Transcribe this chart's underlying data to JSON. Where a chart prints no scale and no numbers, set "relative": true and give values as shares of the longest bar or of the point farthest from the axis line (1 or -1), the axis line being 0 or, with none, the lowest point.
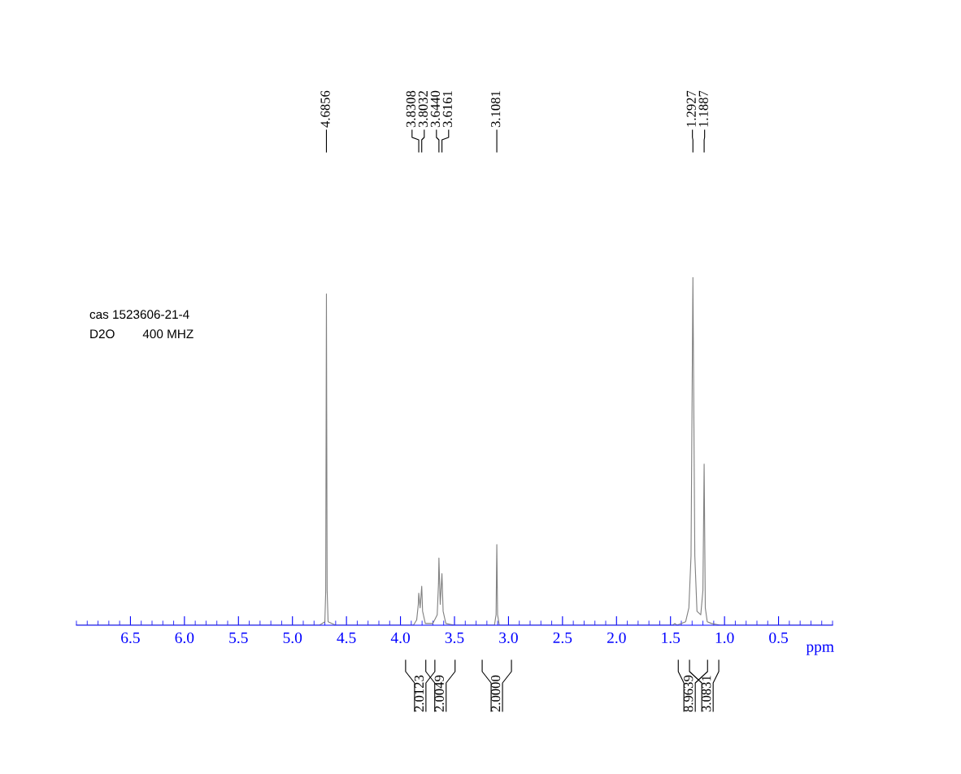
{
  "chart_data": {
    "type": "line",
    "relative": true,
    "xlabel": "ppm",
    "xlim": [
      7.0,
      0.0
    ],
    "xticks": [
      6.5,
      {
        "value": 6.0,
        "label": "6.0"
      },
      5.5,
      {
        "value": 5.0,
        "label": "5.0"
      },
      4.5,
      {
        "value": 4.0,
        "label": "4.0"
      },
      3.5,
      {
        "value": 3.0,
        "label": "3.0"
      },
      2.5,
      {
        "value": 2.0,
        "label": "2.0"
      },
      1.5,
      {
        "value": 1.0,
        "label": "1.0"
      },
      0.5
    ],
    "grid": false,
    "legend": false,
    "marker": "none",
    "line_style": "solid",
    "tick_labels": "x",
    "series": [
      {
        "color": "#808080",
        "x": [
          7.0,
          4.75,
          4.7,
          4.692,
          4.6856,
          4.679,
          4.67,
          4.6,
          3.88,
          3.85,
          3.835,
          3.8308,
          3.818,
          3.8032,
          3.795,
          3.77,
          3.7,
          3.66,
          3.648,
          3.644,
          3.632,
          3.616,
          3.605,
          3.58,
          3.5,
          3.13,
          3.115,
          3.1081,
          3.101,
          3.085,
          1.48,
          1.46,
          1.44,
          1.36,
          1.33,
          1.31,
          1.2927,
          1.275,
          1.255,
          1.22,
          1.2,
          1.1887,
          1.178,
          1.16,
          1.12,
          1.04,
          0.0
        ],
        "values": [
          0,
          0,
          0.01,
          0.1,
          0.952,
          0.1,
          0.01,
          0,
          0,
          0.015,
          0.06,
          0.092,
          0.05,
          0.112,
          0.04,
          0.005,
          0.005,
          0.03,
          0.12,
          0.193,
          0.06,
          0.148,
          0.04,
          0.005,
          0,
          0,
          0.03,
          0.232,
          0.03,
          0,
          0,
          0.005,
          0,
          0.01,
          0.05,
          0.2,
          1.0,
          0.2,
          0.04,
          0.03,
          0.1,
          0.463,
          0.05,
          0.01,
          0.005,
          0,
          0
        ]
      }
    ],
    "annotations": [
      "cas 1523606-21-4",
      "D2O        400 MHZ",
      "4.6856",
      "3.8308",
      "3.8032",
      "3.6440",
      "3.6161",
      "3.1081",
      "1.2927",
      "1.1887",
      "2.0123",
      "2.0049",
      "2.0000",
      "8.9639",
      "3.0831"
    ]
  }
}
